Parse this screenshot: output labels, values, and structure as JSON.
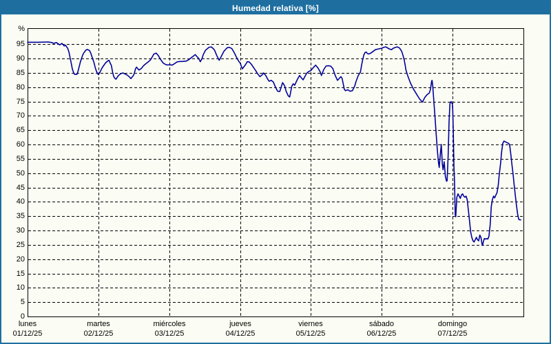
{
  "title_bar": {
    "title": "Humedad relativa [%]"
  },
  "colors": {
    "title_bar_bg": "#1E6FA0",
    "title_text": "#FFFFFF",
    "page_border": "#1E6FA0",
    "background": "#FBFCF3",
    "line": "#00009B",
    "grid": "#000000",
    "axis": "#000000",
    "tick_text": "#000000"
  },
  "chart_data": {
    "type": "line",
    "title": "Humedad relativa [%]",
    "ylabel": "%",
    "unit_label": "%",
    "grid": true,
    "grid_style": "dashed",
    "legend_position": "none",
    "ylim": [
      0,
      100.6
    ],
    "xlim_days": [
      0,
      7
    ],
    "y_ticks": [
      0,
      5,
      10,
      15,
      20,
      25,
      30,
      35,
      40,
      45,
      50,
      55,
      60,
      65,
      70,
      75,
      80,
      85,
      90,
      95
    ],
    "x_ticks": [
      {
        "label": "lunes",
        "date": "01/12/25",
        "pos": 0
      },
      {
        "label": "martes",
        "date": "02/12/25",
        "pos": 1
      },
      {
        "label": "miércoles",
        "date": "03/12/25",
        "pos": 2
      },
      {
        "label": "jueves",
        "date": "04/12/25",
        "pos": 3
      },
      {
        "label": "viernes",
        "date": "05/12/25",
        "pos": 4
      },
      {
        "label": "sábado",
        "date": "06/12/25",
        "pos": 5
      },
      {
        "label": "domingo",
        "date": "07/12/25",
        "pos": 6
      }
    ],
    "series": [
      {
        "name": "Humedad relativa",
        "color": "#00009B",
        "points": [
          [
            0.0,
            95.7
          ],
          [
            0.15,
            95.7
          ],
          [
            0.29,
            95.8
          ],
          [
            0.34,
            95.6
          ],
          [
            0.372,
            95.3
          ],
          [
            0.405,
            95.6
          ],
          [
            0.454,
            94.8
          ],
          [
            0.486,
            95.3
          ],
          [
            0.518,
            94.4
          ],
          [
            0.535,
            94.7
          ],
          [
            0.567,
            93.6
          ],
          [
            0.583,
            92.4
          ],
          [
            0.6,
            90.4
          ],
          [
            0.616,
            88.4
          ],
          [
            0.632,
            86.4
          ],
          [
            0.648,
            85.2
          ],
          [
            0.664,
            84.5
          ],
          [
            0.697,
            84.5
          ],
          [
            0.713,
            85.6
          ],
          [
            0.729,
            87.2
          ],
          [
            0.746,
            88.8
          ],
          [
            0.761,
            90.0
          ],
          [
            0.778,
            91.2
          ],
          [
            0.794,
            92.0
          ],
          [
            0.81,
            92.5
          ],
          [
            0.826,
            93.0
          ],
          [
            0.843,
            93.2
          ],
          [
            0.859,
            93.0
          ],
          [
            0.875,
            92.8
          ],
          [
            0.891,
            92.0
          ],
          [
            0.907,
            90.8
          ],
          [
            0.924,
            89.6
          ],
          [
            0.94,
            88.4
          ],
          [
            0.956,
            86.8
          ],
          [
            0.972,
            85.6
          ],
          [
            0.988,
            84.8
          ],
          [
            1.0,
            84.4
          ],
          [
            1.021,
            85.2
          ],
          [
            1.037,
            86.0
          ],
          [
            1.053,
            86.8
          ],
          [
            1.069,
            87.4
          ],
          [
            1.102,
            88.5
          ],
          [
            1.134,
            89.2
          ],
          [
            1.15,
            89.4
          ],
          [
            1.167,
            88.4
          ],
          [
            1.183,
            87.6
          ],
          [
            1.199,
            85.5
          ],
          [
            1.215,
            83.8
          ],
          [
            1.232,
            83.1
          ],
          [
            1.248,
            82.8
          ],
          [
            1.28,
            84.0
          ],
          [
            1.313,
            84.7
          ],
          [
            1.345,
            85.0
          ],
          [
            1.378,
            84.6
          ],
          [
            1.41,
            84.2
          ],
          [
            1.442,
            83.5
          ],
          [
            1.458,
            83.0
          ],
          [
            1.491,
            84.0
          ],
          [
            1.507,
            84.8
          ],
          [
            1.523,
            86.4
          ],
          [
            1.539,
            87.0
          ],
          [
            1.572,
            86.0
          ],
          [
            1.604,
            86.5
          ],
          [
            1.636,
            87.5
          ],
          [
            1.669,
            88.2
          ],
          [
            1.702,
            88.8
          ],
          [
            1.734,
            89.5
          ],
          [
            1.766,
            90.8
          ],
          [
            1.783,
            91.6
          ],
          [
            1.815,
            91.9
          ],
          [
            1.847,
            91.0
          ],
          [
            1.88,
            89.6
          ],
          [
            1.912,
            88.5
          ],
          [
            1.944,
            88.0
          ],
          [
            1.961,
            87.8
          ],
          [
            2.0,
            87.8
          ],
          [
            2.025,
            87.8
          ],
          [
            2.042,
            87.7
          ],
          [
            2.074,
            88.2
          ],
          [
            2.107,
            88.8
          ],
          [
            2.123,
            88.9
          ],
          [
            2.156,
            89.0
          ],
          [
            2.188,
            89.0
          ],
          [
            2.22,
            89.1
          ],
          [
            2.236,
            89.1
          ],
          [
            2.269,
            89.5
          ],
          [
            2.301,
            90.1
          ],
          [
            2.333,
            90.7
          ],
          [
            2.366,
            91.4
          ],
          [
            2.399,
            90.5
          ],
          [
            2.414,
            90.1
          ],
          [
            2.438,
            88.9
          ],
          [
            2.463,
            90.0
          ],
          [
            2.479,
            91.3
          ],
          [
            2.511,
            92.9
          ],
          [
            2.544,
            93.6
          ],
          [
            2.56,
            93.9
          ],
          [
            2.593,
            94.1
          ],
          [
            2.625,
            93.4
          ],
          [
            2.641,
            92.9
          ],
          [
            2.674,
            90.9
          ],
          [
            2.706,
            89.4
          ],
          [
            2.738,
            90.9
          ],
          [
            2.771,
            92.5
          ],
          [
            2.803,
            93.4
          ],
          [
            2.819,
            93.8
          ],
          [
            2.852,
            93.9
          ],
          [
            2.884,
            93.5
          ],
          [
            2.917,
            92.1
          ],
          [
            2.949,
            90.5
          ],
          [
            2.982,
            89.0
          ],
          [
            3.0,
            88.5
          ],
          [
            3.031,
            86.4
          ],
          [
            3.08,
            88.0
          ],
          [
            3.1,
            88.9
          ],
          [
            3.13,
            88.8
          ],
          [
            3.16,
            88.0
          ],
          [
            3.19,
            86.9
          ],
          [
            3.22,
            85.8
          ],
          [
            3.25,
            84.6
          ],
          [
            3.28,
            83.7
          ],
          [
            3.31,
            84.3
          ],
          [
            3.33,
            85.0
          ],
          [
            3.36,
            84.2
          ],
          [
            3.39,
            82.8
          ],
          [
            3.41,
            82.1
          ],
          [
            3.44,
            82.4
          ],
          [
            3.47,
            81.8
          ],
          [
            3.5,
            80.0
          ],
          [
            3.53,
            78.6
          ],
          [
            3.56,
            78.5
          ],
          [
            3.58,
            80.0
          ],
          [
            3.6,
            81.6
          ],
          [
            3.63,
            80.4
          ],
          [
            3.65,
            78.6
          ],
          [
            3.68,
            77.0
          ],
          [
            3.7,
            76.6
          ],
          [
            3.73,
            80.4
          ],
          [
            3.75,
            81.2
          ],
          [
            3.77,
            80.7
          ],
          [
            3.81,
            82.8
          ],
          [
            3.84,
            84.1
          ],
          [
            3.87,
            83.1
          ],
          [
            3.89,
            82.6
          ],
          [
            3.94,
            84.9
          ],
          [
            3.97,
            85.5
          ],
          [
            4.0,
            85.8
          ],
          [
            4.035,
            86.9
          ],
          [
            4.067,
            87.7
          ],
          [
            4.1,
            86.7
          ],
          [
            4.132,
            85.3
          ],
          [
            4.148,
            84.1
          ],
          [
            4.18,
            86.1
          ],
          [
            4.213,
            87.4
          ],
          [
            4.246,
            87.5
          ],
          [
            4.278,
            87.4
          ],
          [
            4.31,
            86.5
          ],
          [
            4.343,
            84.1
          ],
          [
            4.375,
            82.4
          ],
          [
            4.407,
            83.3
          ],
          [
            4.424,
            83.7
          ],
          [
            4.44,
            83.1
          ],
          [
            4.472,
            79.2
          ],
          [
            4.489,
            78.8
          ],
          [
            4.521,
            79.1
          ],
          [
            4.553,
            78.6
          ],
          [
            4.586,
            78.8
          ],
          [
            4.618,
            80.4
          ],
          [
            4.637,
            82.0
          ],
          [
            4.667,
            84.0
          ],
          [
            4.699,
            85.3
          ],
          [
            4.715,
            87.7
          ],
          [
            4.732,
            89.7
          ],
          [
            4.747,
            91.3
          ],
          [
            4.764,
            92.1
          ],
          [
            4.78,
            92.3
          ],
          [
            4.796,
            91.8
          ],
          [
            4.813,
            91.6
          ],
          [
            4.845,
            91.9
          ],
          [
            4.878,
            92.5
          ],
          [
            4.91,
            93.1
          ],
          [
            4.958,
            93.4
          ],
          [
            5.0,
            93.6
          ],
          [
            5.023,
            93.9
          ],
          [
            5.056,
            94.1
          ],
          [
            5.104,
            93.4
          ],
          [
            5.136,
            93.1
          ],
          [
            5.169,
            93.7
          ],
          [
            5.218,
            94.1
          ],
          [
            5.25,
            93.7
          ],
          [
            5.282,
            92.5
          ],
          [
            5.298,
            91.3
          ],
          [
            5.315,
            89.7
          ],
          [
            5.331,
            87.7
          ],
          [
            5.34,
            86.1
          ],
          [
            5.367,
            84.0
          ],
          [
            5.405,
            81.5
          ],
          [
            5.444,
            79.5
          ],
          [
            5.493,
            77.5
          ],
          [
            5.532,
            76.0
          ],
          [
            5.574,
            74.8
          ],
          [
            5.607,
            76.4
          ],
          [
            5.639,
            77.4
          ],
          [
            5.671,
            78.0
          ],
          [
            5.687,
            79.2
          ],
          [
            5.704,
            82.1
          ],
          [
            5.71,
            82.4
          ],
          [
            5.719,
            80.8
          ],
          [
            5.736,
            74.8
          ],
          [
            5.753,
            69.2
          ],
          [
            5.768,
            63.6
          ],
          [
            5.785,
            58.0
          ],
          [
            5.801,
            53.6
          ],
          [
            5.811,
            52.0
          ],
          [
            5.826,
            56.4
          ],
          [
            5.84,
            60.0
          ],
          [
            5.855,
            53.2
          ],
          [
            5.865,
            51.2
          ],
          [
            5.881,
            54.0
          ],
          [
            5.898,
            48.8
          ],
          [
            5.914,
            47.2
          ],
          [
            5.923,
            47.4
          ],
          [
            5.937,
            56.4
          ],
          [
            5.95,
            68.0
          ],
          [
            5.963,
            74.4
          ],
          [
            5.979,
            75.0
          ],
          [
            5.996,
            74.2
          ],
          [
            6.002,
            72.4
          ],
          [
            6.009,
            65.0
          ],
          [
            6.018,
            53.0
          ],
          [
            6.028,
            46.4
          ],
          [
            6.037,
            35.6
          ],
          [
            6.044,
            34.8
          ],
          [
            6.06,
            41.6
          ],
          [
            6.076,
            42.8
          ],
          [
            6.093,
            42.0
          ],
          [
            6.108,
            41.2
          ],
          [
            6.125,
            42.4
          ],
          [
            6.141,
            42.8
          ],
          [
            6.157,
            42.0
          ],
          [
            6.174,
            41.6
          ],
          [
            6.19,
            42.0
          ],
          [
            6.206,
            40.8
          ],
          [
            6.222,
            37.2
          ],
          [
            6.238,
            33.6
          ],
          [
            6.254,
            29.6
          ],
          [
            6.271,
            27.6
          ],
          [
            6.287,
            26.4
          ],
          [
            6.303,
            26.0
          ],
          [
            6.319,
            26.8
          ],
          [
            6.336,
            27.6
          ],
          [
            6.351,
            26.8
          ],
          [
            6.368,
            26.4
          ],
          [
            6.384,
            28.4
          ],
          [
            6.4,
            27.6
          ],
          [
            6.416,
            25.2
          ],
          [
            6.423,
            24.8
          ],
          [
            6.433,
            26.0
          ],
          [
            6.448,
            27.2
          ],
          [
            6.465,
            27.0
          ],
          [
            6.481,
            27.2
          ],
          [
            6.497,
            27.0
          ],
          [
            6.513,
            28.0
          ],
          [
            6.53,
            32.0
          ],
          [
            6.546,
            38.4
          ],
          [
            6.562,
            40.8
          ],
          [
            6.578,
            42.0
          ],
          [
            6.594,
            41.4
          ],
          [
            6.611,
            42.4
          ],
          [
            6.627,
            43.2
          ],
          [
            6.643,
            45.6
          ],
          [
            6.659,
            49.6
          ],
          [
            6.676,
            53.2
          ],
          [
            6.691,
            57.2
          ],
          [
            6.708,
            60.4
          ],
          [
            6.724,
            61.2
          ],
          [
            6.74,
            61.0
          ],
          [
            6.757,
            60.8
          ],
          [
            6.789,
            60.4
          ],
          [
            6.805,
            60.0
          ],
          [
            6.822,
            56.5
          ],
          [
            6.838,
            53.0
          ],
          [
            6.854,
            49.5
          ],
          [
            6.871,
            45.5
          ],
          [
            6.886,
            42.0
          ],
          [
            6.903,
            38.5
          ],
          [
            6.919,
            35.5
          ],
          [
            6.935,
            33.8
          ],
          [
            6.961,
            33.7
          ]
        ]
      }
    ]
  }
}
